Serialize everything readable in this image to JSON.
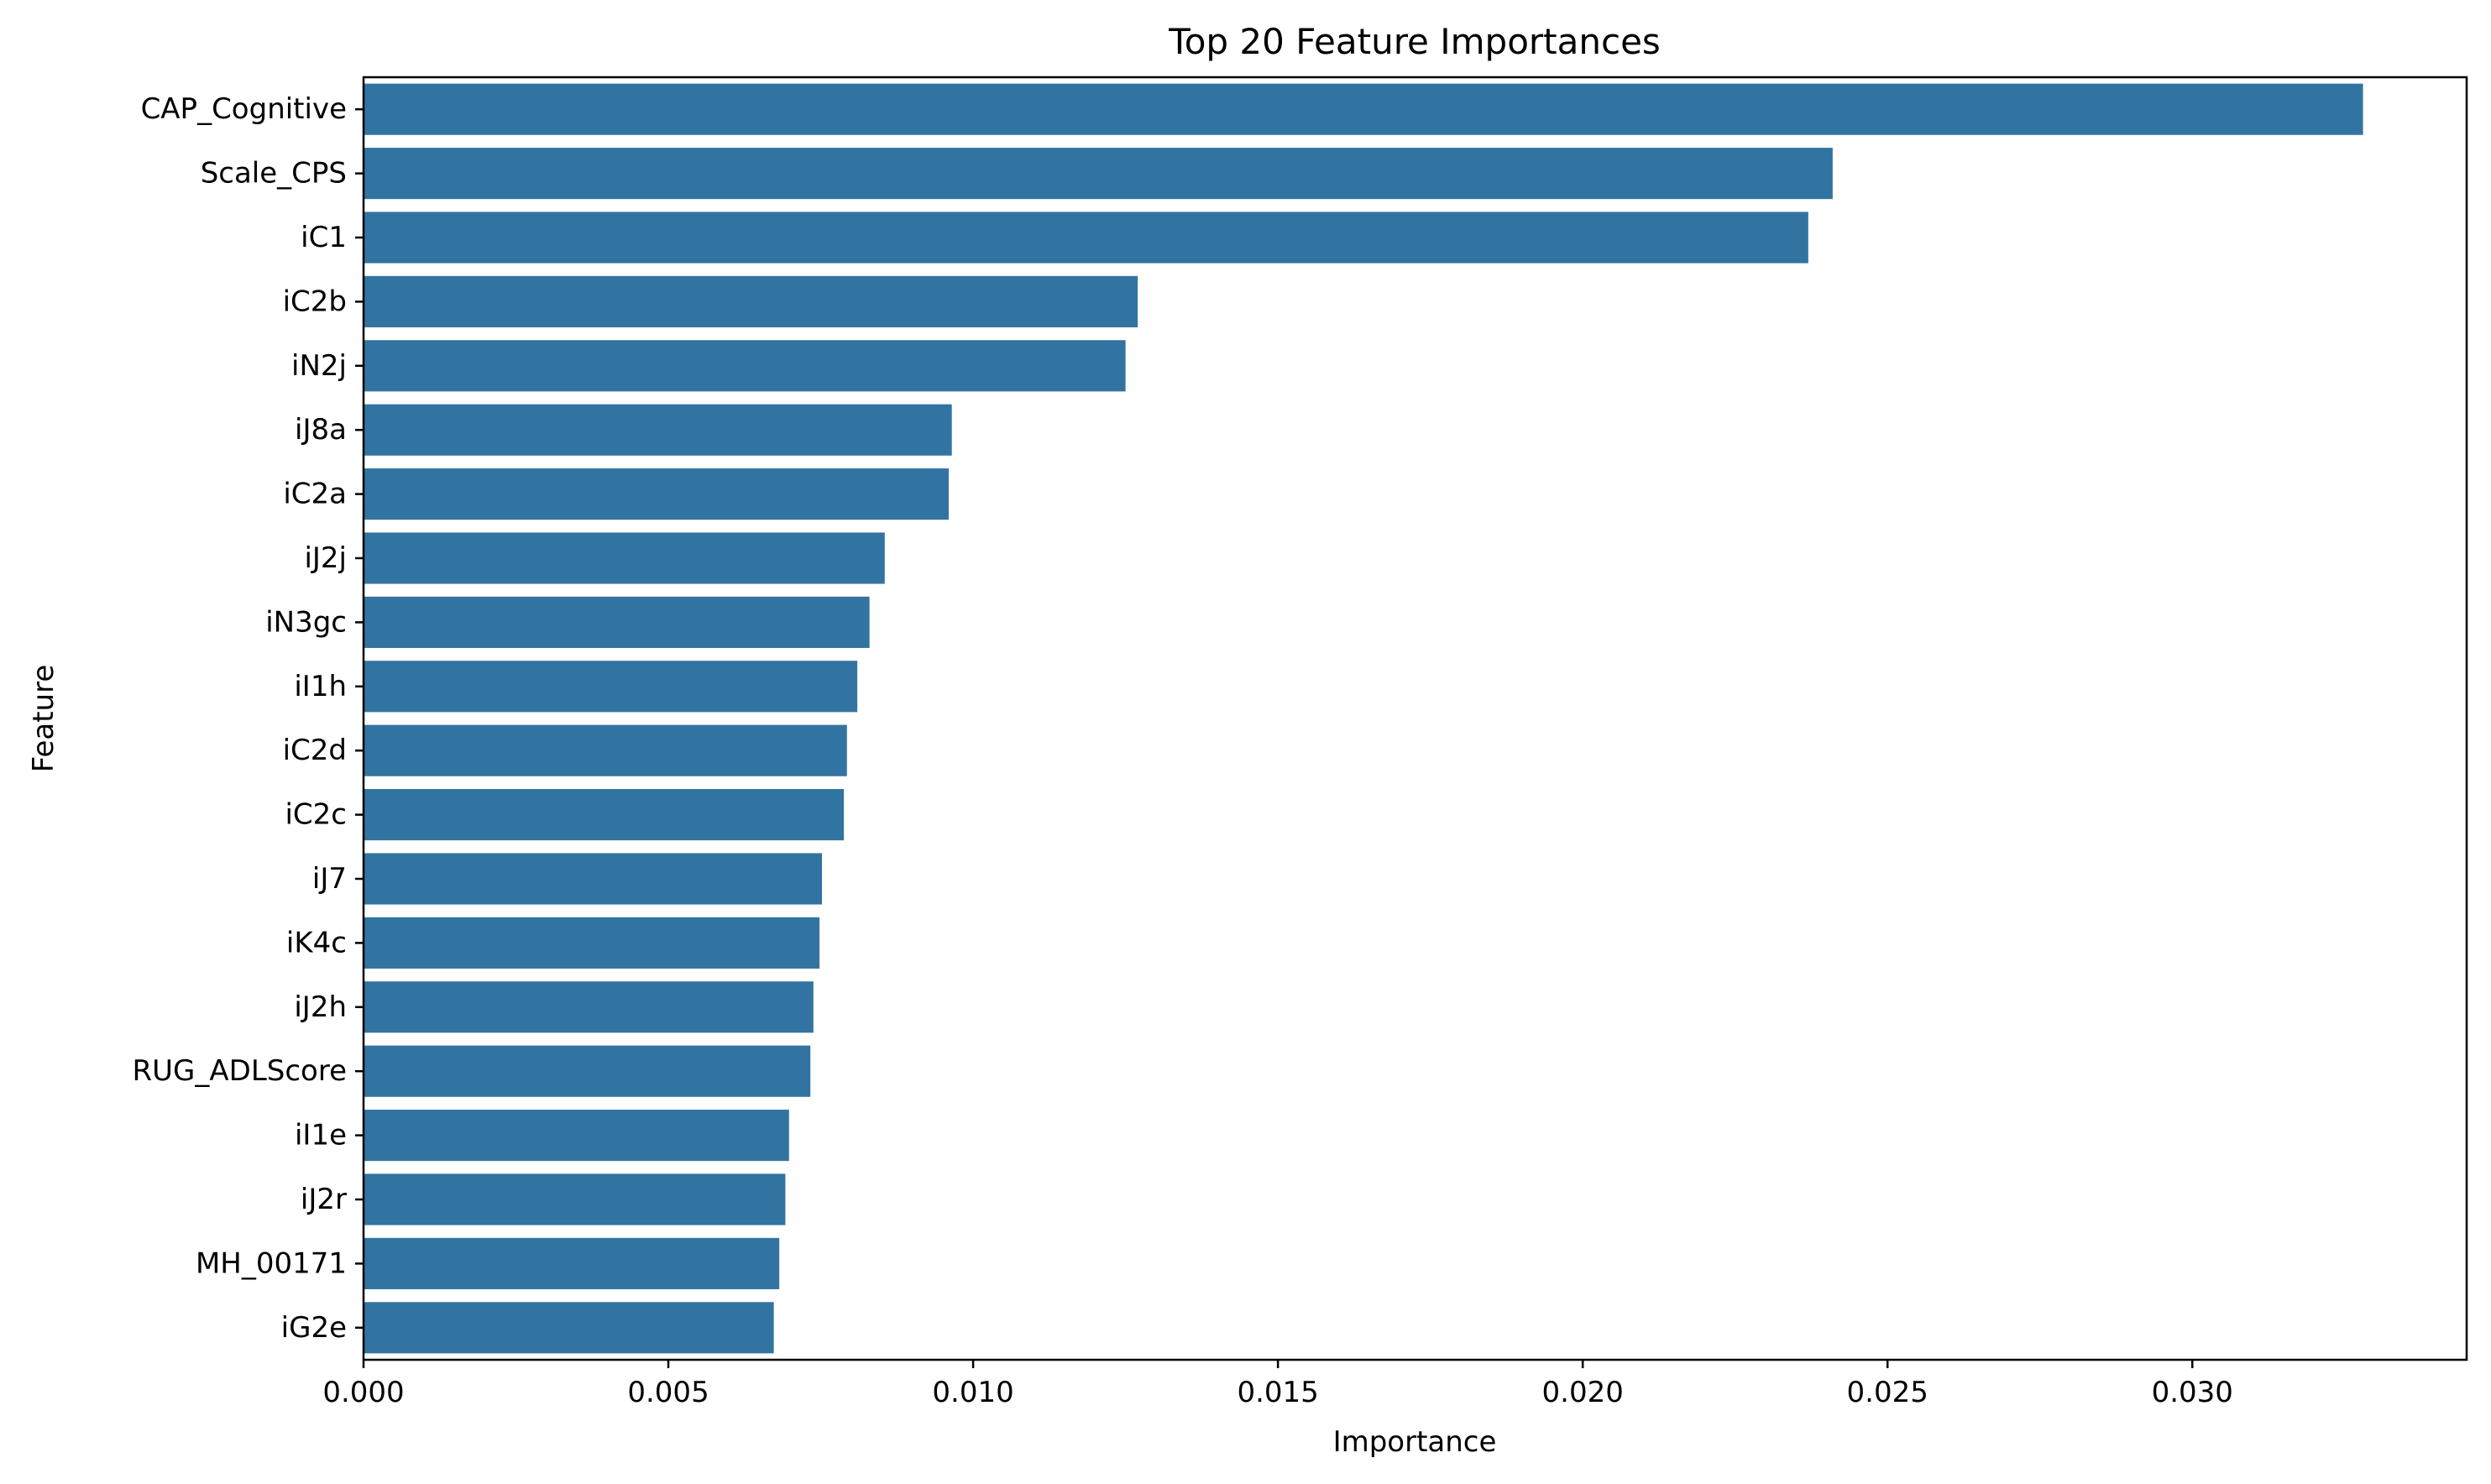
{
  "chart_data": {
    "type": "bar",
    "orientation": "horizontal",
    "title": "Top 20 Feature Importances",
    "xlabel": "Importance",
    "ylabel": "Feature",
    "categories": [
      "CAP_Cognitive",
      "Scale_CPS",
      "iC1",
      "iC2b",
      "iN2j",
      "iJ8a",
      "iC2a",
      "iJ2j",
      "iN3gc",
      "iI1h",
      "iC2d",
      "iC2c",
      "iJ7",
      "iK4c",
      "iJ2h",
      "RUG_ADLScore",
      "iI1e",
      "iJ2r",
      "MH_00171",
      "iG2e"
    ],
    "values": [
      0.0328,
      0.0241,
      0.0237,
      0.0127,
      0.0125,
      0.00965,
      0.0096,
      0.00855,
      0.0083,
      0.0081,
      0.00793,
      0.00788,
      0.00752,
      0.00748,
      0.00738,
      0.00733,
      0.00698,
      0.00692,
      0.00682,
      0.00673
    ],
    "xlim": [
      0,
      0.0345
    ],
    "xticks": [
      0.0,
      0.005,
      0.01,
      0.015,
      0.02,
      0.025,
      0.03
    ],
    "xtick_labels": [
      "0.000",
      "0.005",
      "0.010",
      "0.015",
      "0.020",
      "0.025",
      "0.030"
    ],
    "grid": false,
    "bar_color": "#3274a1"
  }
}
